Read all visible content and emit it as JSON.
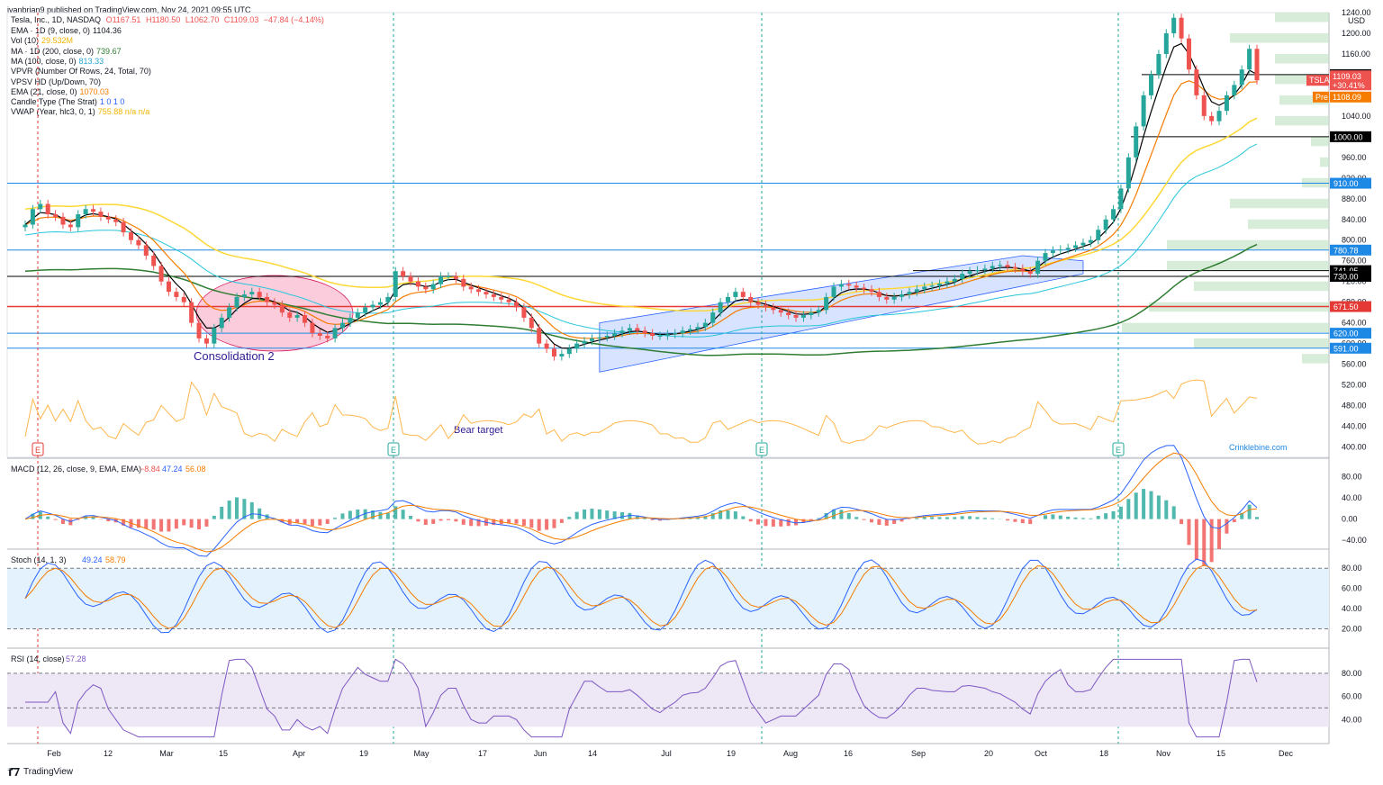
{
  "publisher": "ivanbrian9 published on TradingView.com, Nov 24, 2021 09:55 UTC",
  "footer": "TradingView",
  "watermark": "Crinklebine.com",
  "header": {
    "title": "Tesla, Inc., 1D, NASDAQ",
    "ohlc": {
      "O": "O1167.51",
      "H": "H1180.50",
      "L": "L1062.70",
      "C": "C1109.03",
      "chg": "−47.84 (−4.14%)"
    },
    "lines": [
      {
        "label": "EMA · 1D (9, close, 0)",
        "value": "1104.36",
        "color": "#131722"
      },
      {
        "label": "Vol (10)",
        "value": "29.532M",
        "color": "#f0b400"
      },
      {
        "label": "MA · 1D (200, close, 0)",
        "value": "739.67",
        "color": "#2e7d32"
      },
      {
        "label": "MA (100, close, 0)",
        "value": "813.33",
        "color": "#26a5c9"
      },
      {
        "label": "VPVR (Number Of Rows, 24, Total, 70)",
        "value": "",
        "color": "#131722"
      },
      {
        "label": "VPSV HD (Up/Down, 70)",
        "value": "",
        "color": "#131722"
      },
      {
        "label": "EMA (21, close, 0)",
        "value": "1070.03",
        "color": "#f57c00"
      },
      {
        "label": "Candle Type (The Strat)",
        "value": "1  0  1  0",
        "color": "#2962ff"
      },
      {
        "label": "VWAP (Year, hlc3, 0, 1)",
        "value": "755.88  n/a  n/a",
        "color": "#f0b400"
      }
    ]
  },
  "chart_data": [
    {
      "type": "candlestick",
      "title": "Tesla, Inc., 1D, NASDAQ",
      "ylim": [
        380,
        1240
      ],
      "yticks": [
        "1240.00",
        "1200.00",
        "1160.00",
        "1120.00",
        "1080.00",
        "1040.00",
        "1000.00",
        "960.00",
        "920.00",
        "880.00",
        "840.00",
        "800.00",
        "760.00",
        "720.00",
        "680.00",
        "640.00",
        "600.00",
        "560.00",
        "520.00",
        "480.00",
        "440.00",
        "400.00"
      ],
      "currency": "USD",
      "xticks": [
        "Feb",
        "12",
        "Mar",
        "15",
        "Apr",
        "19",
        "May",
        "17",
        "Jun",
        "14",
        "Jul",
        "19",
        "Aug",
        "16",
        "Sep",
        "20",
        "Oct",
        "18",
        "Nov",
        "15",
        "Dec"
      ],
      "levels": [
        {
          "value": 1120.0,
          "label": "1120.00",
          "color": "#000000"
        },
        {
          "value": 1000.0,
          "label": "1000.00",
          "color": "#000000"
        },
        {
          "value": 910.0,
          "label": "910.00",
          "color": "#1e88e5"
        },
        {
          "value": 780.78,
          "label": "780.78",
          "color": "#1e88e5"
        },
        {
          "value": 741.05,
          "label": "741.05",
          "color": "#000000"
        },
        {
          "value": 730.0,
          "label": "730.00",
          "color": "#1e88e5"
        },
        {
          "value": 730.0,
          "label": "730.00",
          "color": "#000000"
        },
        {
          "value": 671.5,
          "label": "671.50",
          "color": "#e53935"
        },
        {
          "value": 620.0,
          "label": "620.00",
          "color": "#1e88e5"
        },
        {
          "value": 591.0,
          "label": "591.00",
          "color": "#1e88e5"
        }
      ],
      "price_tags": [
        {
          "label": "TSLA",
          "value": "1109.03",
          "sub": "+30.41%",
          "color": "#ef5350"
        },
        {
          "label": "Pre",
          "value": "1108.09",
          "color": "#f57c00"
        }
      ],
      "annotations": [
        "Consolidation 2",
        "Bear target"
      ],
      "closes": [
        830,
        860,
        870,
        850,
        845,
        830,
        825,
        850,
        860,
        855,
        845,
        840,
        835,
        815,
        800,
        790,
        770,
        750,
        720,
        700,
        690,
        680,
        640,
        610,
        600,
        630,
        650,
        670,
        690,
        695,
        700,
        690,
        680,
        675,
        660,
        650,
        655,
        640,
        620,
        615,
        610,
        630,
        640,
        650,
        660,
        670,
        675,
        680,
        690,
        740,
        730,
        720,
        710,
        705,
        715,
        730,
        730,
        725,
        710,
        705,
        700,
        695,
        690,
        685,
        680,
        670,
        650,
        630,
        600,
        590,
        575,
        580,
        590,
        600,
        605,
        610,
        612,
        615,
        620,
        625,
        630,
        625,
        620,
        615,
        615,
        618,
        620,
        625,
        628,
        632,
        640,
        660,
        680,
        690,
        700,
        690,
        680,
        675,
        670,
        665,
        660,
        655,
        650,
        655,
        660,
        665,
        690,
        710,
        715,
        712,
        708,
        705,
        700,
        690,
        685,
        690,
        695,
        700,
        705,
        710,
        712,
        716,
        720,
        725,
        735,
        740,
        742,
        745,
        750,
        752,
        748,
        745,
        740,
        735,
        760,
        775,
        780,
        782,
        785,
        790,
        795,
        800,
        820,
        840,
        860,
        900,
        960,
        1020,
        1080,
        1120,
        1160,
        1200,
        1230,
        1190,
        1130,
        1080,
        1040,
        1030,
        1050,
        1080,
        1100,
        1130,
        1170,
        1109
      ]
    },
    {
      "type": "macd",
      "title": "MACD (12, 26, close, 9, EMA, EMA)",
      "values": [
        "−8.84",
        "47.24",
        "56.08"
      ],
      "yticks": [
        "80.00",
        "40.00",
        "0.00",
        "−40.00"
      ]
    },
    {
      "type": "stochastic",
      "title": "Stoch (14, 1, 3)",
      "values": [
        "49.24",
        "58.79"
      ],
      "yticks": [
        "80.00",
        "60.00",
        "40.00",
        "20.00"
      ]
    },
    {
      "type": "rsi",
      "title": "RSI (14, close)",
      "values": [
        "57.28"
      ],
      "yticks": [
        "80.00",
        "60.00",
        "40.00"
      ]
    }
  ]
}
